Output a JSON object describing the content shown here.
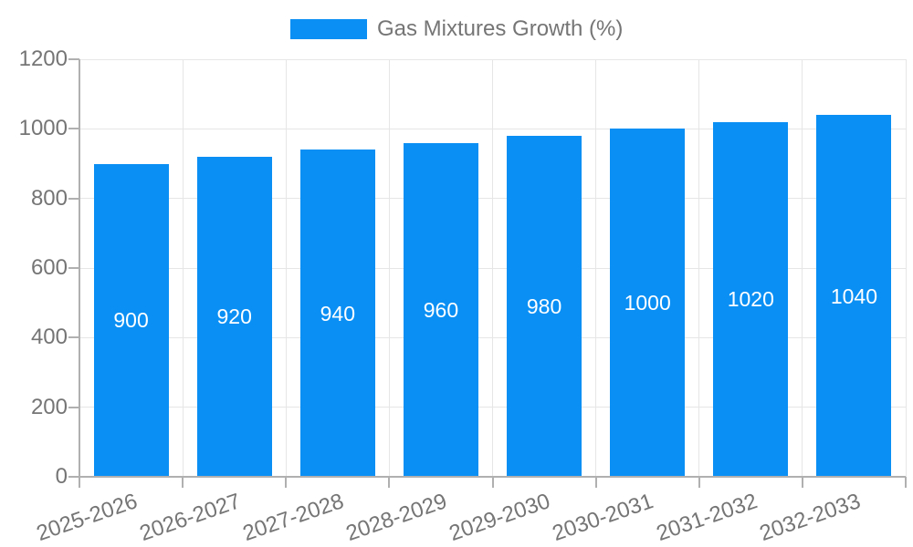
{
  "legend": {
    "label": "Gas Mixtures Growth (%)"
  },
  "chart_data": {
    "type": "bar",
    "title": "",
    "xlabel": "",
    "ylabel": "",
    "categories": [
      "2025-2026",
      "2026-2027",
      "2027-2028",
      "2028-2029",
      "2029-2030",
      "2030-2031",
      "2031-2032",
      "2032-2033"
    ],
    "values": [
      900,
      920,
      940,
      960,
      980,
      1000,
      1020,
      1040
    ],
    "series_name": "Gas Mixtures Growth (%)",
    "bar_value_labels": [
      "900",
      "920",
      "940",
      "960",
      "980",
      "1000",
      "1020",
      "1040"
    ],
    "ylim": [
      0,
      1200
    ],
    "yticks": [
      0,
      200,
      400,
      600,
      800,
      1000,
      1200
    ],
    "grid": true,
    "legend_position": "top-center",
    "x_label_rotation_deg": -19,
    "colors": {
      "bar": "#0a90f5",
      "grid": "#e6e6e6",
      "axis_line": "#b0b0b0",
      "axis_text": "#757575",
      "value_label": "#ffffff",
      "legend_text": "#757575",
      "background": "#ffffff"
    }
  }
}
